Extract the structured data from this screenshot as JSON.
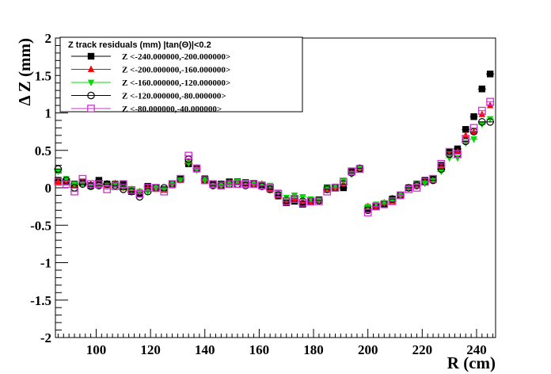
{
  "chart_data": {
    "type": "scatter",
    "title": "",
    "xlabel": "R (cm)",
    "ylabel": "Δ Z (mm)",
    "xlim": [
      85,
      247
    ],
    "ylim": [
      -2,
      2
    ],
    "xticks": [
      100,
      120,
      140,
      160,
      180,
      200,
      220,
      240
    ],
    "xtick_labels": [
      "100",
      "120",
      "140",
      "160",
      "180",
      "200",
      "220",
      "240"
    ],
    "yticks": [
      -2,
      -1.5,
      -1,
      -0.5,
      0,
      0.5,
      1,
      1.5,
      2
    ],
    "ytick_labels": [
      "-2",
      "-1.5",
      "-1",
      "-0.5",
      "0",
      "0.5",
      "1",
      "1.5",
      "2"
    ],
    "grid": false,
    "legend_position": "top-left",
    "legend_title": "Z track residuals (mm) |tan(Θ)|<0.2",
    "x": [
      86,
      89,
      92,
      95,
      98,
      101,
      104,
      107,
      110,
      113,
      116,
      119,
      122,
      125,
      128,
      131,
      134,
      137,
      140,
      143,
      146,
      149,
      152,
      155,
      158,
      161,
      164,
      167,
      170,
      173,
      176,
      179,
      182,
      185,
      188,
      191,
      194,
      197,
      200,
      203,
      206,
      209,
      212,
      215,
      218,
      221,
      224,
      227,
      230,
      233,
      236,
      239,
      242,
      245
    ],
    "series": [
      {
        "name": "Z <-240.000000,-200.000000>",
        "marker": "square-filled",
        "color": "#000000",
        "values": [
          0.1,
          0.08,
          0.05,
          0.07,
          0.03,
          0.1,
          0.05,
          0.05,
          0.05,
          -0.05,
          -0.08,
          0.02,
          0.0,
          -0.02,
          0.05,
          0.12,
          0.32,
          0.25,
          0.12,
          0.05,
          0.05,
          0.08,
          0.08,
          0.07,
          0.06,
          0.04,
          0.0,
          -0.1,
          -0.2,
          -0.18,
          -0.22,
          -0.18,
          -0.16,
          0.0,
          0.0,
          0.0,
          0.22,
          0.26,
          -0.28,
          -0.25,
          -0.22,
          -0.15,
          -0.1,
          0.0,
          0.05,
          0.1,
          0.12,
          0.3,
          0.48,
          0.52,
          0.78,
          0.95,
          1.32,
          1.52
        ]
      },
      {
        "name": "Z <-200.000000,-160.000000>",
        "marker": "triangle-up-filled",
        "color": "#ff0000",
        "values": [
          0.08,
          0.1,
          0.03,
          0.08,
          0.05,
          0.05,
          0.03,
          0.06,
          0.0,
          -0.02,
          -0.05,
          0.0,
          -0.02,
          -0.03,
          0.03,
          0.1,
          0.35,
          0.25,
          0.1,
          0.05,
          0.03,
          0.07,
          0.08,
          0.05,
          0.05,
          0.05,
          -0.03,
          -0.12,
          -0.2,
          -0.15,
          -0.18,
          -0.2,
          -0.17,
          -0.03,
          0.0,
          0.05,
          0.2,
          0.25,
          -0.25,
          -0.25,
          -0.2,
          -0.18,
          -0.1,
          0.0,
          0.03,
          0.08,
          0.1,
          0.28,
          0.45,
          0.48,
          0.7,
          0.75,
          0.98,
          1.1
        ]
      },
      {
        "name": "Z <-160.000000,-120.000000>",
        "marker": "triangle-down-filled",
        "color": "#00dd00",
        "values": [
          0.22,
          0.12,
          0.05,
          0.05,
          0.03,
          0.03,
          0.03,
          0.05,
          0.0,
          -0.02,
          -0.05,
          -0.05,
          0.0,
          -0.02,
          0.05,
          0.1,
          0.33,
          0.24,
          0.1,
          0.03,
          0.03,
          0.05,
          0.08,
          0.07,
          0.06,
          0.05,
          0.03,
          -0.06,
          -0.13,
          -0.1,
          -0.12,
          -0.15,
          -0.17,
          0.0,
          0.02,
          0.1,
          0.18,
          0.26,
          -0.25,
          -0.22,
          -0.2,
          -0.17,
          -0.1,
          0.0,
          0.05,
          0.06,
          0.1,
          0.22,
          0.4,
          0.4,
          0.6,
          0.65,
          0.85,
          0.92
        ]
      },
      {
        "name": "Z <-120.000000,-80.000000>",
        "marker": "circle-open",
        "color": "#000000",
        "values": [
          0.25,
          0.1,
          0.0,
          0.05,
          0.02,
          0.03,
          0.05,
          0.03,
          -0.02,
          -0.05,
          -0.12,
          -0.05,
          0.0,
          0.0,
          0.05,
          0.12,
          0.38,
          0.26,
          0.1,
          0.03,
          0.03,
          0.05,
          0.05,
          0.03,
          0.05,
          0.02,
          -0.02,
          -0.1,
          -0.17,
          -0.15,
          -0.18,
          -0.18,
          -0.17,
          -0.02,
          0.0,
          0.05,
          0.2,
          0.26,
          -0.3,
          -0.25,
          -0.22,
          -0.15,
          -0.1,
          0.0,
          0.03,
          0.08,
          0.1,
          0.25,
          0.45,
          0.45,
          0.62,
          0.75,
          0.88,
          0.88
        ]
      },
      {
        "name": "Z <-80.000000,-40.000000>",
        "marker": "square-open",
        "color": "#cc33cc",
        "values": [
          0.08,
          0.05,
          -0.05,
          0.12,
          0.05,
          0.05,
          -0.02,
          0.02,
          0.05,
          -0.03,
          -0.08,
          0.0,
          0.0,
          -0.05,
          0.05,
          0.12,
          0.43,
          0.26,
          0.1,
          0.05,
          0.03,
          0.05,
          0.05,
          0.05,
          0.05,
          0.03,
          0.0,
          -0.08,
          -0.18,
          -0.15,
          -0.2,
          -0.18,
          -0.18,
          -0.05,
          0.0,
          0.08,
          0.22,
          0.25,
          -0.33,
          -0.25,
          -0.22,
          -0.18,
          -0.1,
          -0.02,
          0.0,
          0.08,
          0.12,
          0.32,
          0.48,
          0.45,
          0.65,
          0.8,
          1.03,
          1.15
        ]
      }
    ]
  }
}
